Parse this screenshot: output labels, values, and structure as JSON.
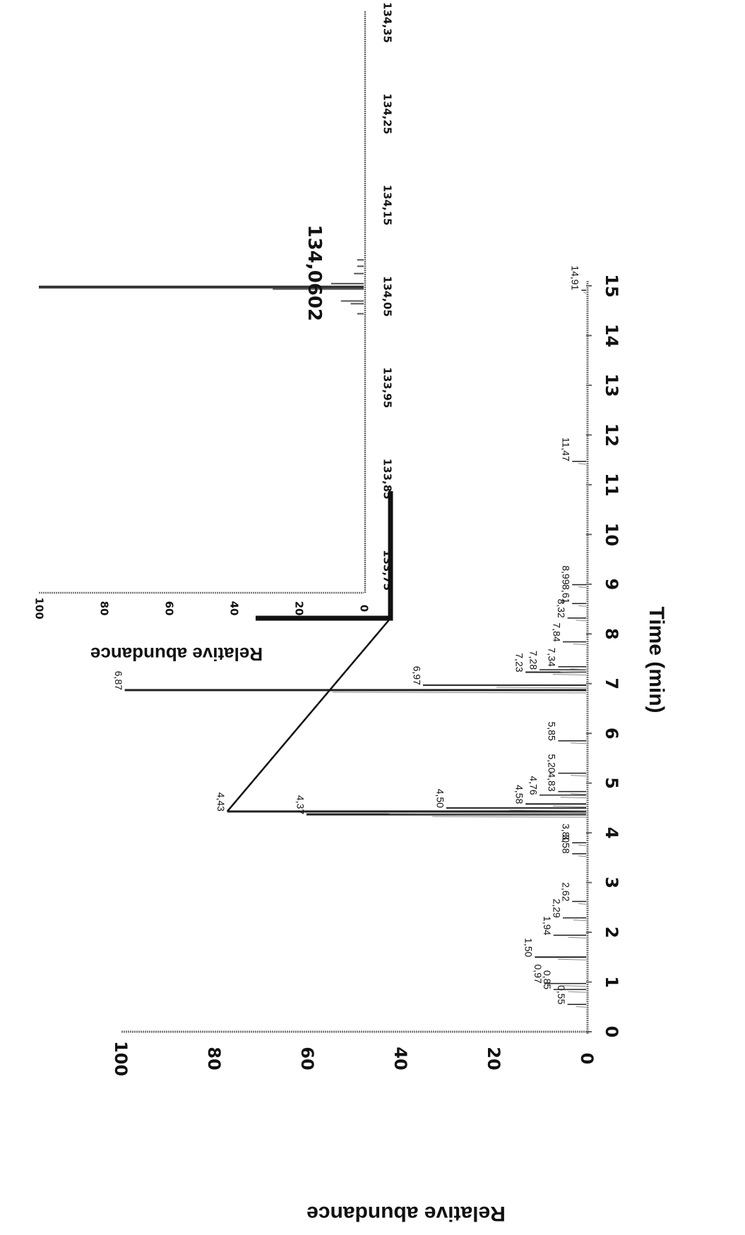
{
  "chart_data": [
    {
      "type": "line",
      "xlabel": "Time (min)",
      "ylabel": "Relative abundance",
      "xlim": [
        0,
        15
      ],
      "ylim": [
        0,
        100
      ],
      "x_ticks": [
        "0",
        "1",
        "2",
        "3",
        "4",
        "5",
        "6",
        "7",
        "8",
        "9",
        "10",
        "11",
        "12",
        "13",
        "14",
        "15"
      ],
      "y_ticks": [
        "0",
        "20",
        "40",
        "60",
        "80",
        "100"
      ],
      "peaks": [
        {
          "label": "0,55",
          "x": 0.55,
          "y": 4
        },
        {
          "label": "0,85",
          "x": 0.85,
          "y": 7
        },
        {
          "label": "0,97",
          "x": 0.97,
          "y": 9
        },
        {
          "label": "1,50",
          "x": 1.5,
          "y": 11
        },
        {
          "label": "1,94",
          "x": 1.94,
          "y": 7
        },
        {
          "label": "2,29",
          "x": 2.29,
          "y": 5
        },
        {
          "label": "2,62",
          "x": 2.62,
          "y": 3
        },
        {
          "label": "3,58",
          "x": 3.58,
          "y": 3
        },
        {
          "label": "3,80",
          "x": 3.8,
          "y": 3
        },
        {
          "label": "4,37",
          "x": 4.37,
          "y": 60
        },
        {
          "label": "4,43",
          "x": 4.43,
          "y": 77
        },
        {
          "label": "4,50",
          "x": 4.5,
          "y": 30
        },
        {
          "label": "4,58",
          "x": 4.58,
          "y": 13
        },
        {
          "label": "4,76",
          "x": 4.76,
          "y": 10
        },
        {
          "label": "4,83",
          "x": 4.83,
          "y": 6
        },
        {
          "label": "5,20",
          "x": 5.2,
          "y": 6
        },
        {
          "label": "5,85",
          "x": 5.85,
          "y": 6
        },
        {
          "label": "6,87",
          "x": 6.87,
          "y": 99
        },
        {
          "label": "6,97",
          "x": 6.97,
          "y": 35
        },
        {
          "label": "7,23",
          "x": 7.23,
          "y": 13
        },
        {
          "label": "7,28",
          "x": 7.28,
          "y": 10
        },
        {
          "label": "7,34",
          "x": 7.34,
          "y": 6
        },
        {
          "label": "7,84",
          "x": 7.84,
          "y": 5
        },
        {
          "label": "8,32",
          "x": 8.32,
          "y": 4
        },
        {
          "label": "8,61",
          "x": 8.61,
          "y": 3
        },
        {
          "label": "8,99",
          "x": 8.99,
          "y": 3
        },
        {
          "label": "11,47",
          "x": 11.47,
          "y": 3
        },
        {
          "label": "14,91",
          "x": 14.91,
          "y": 1
        }
      ]
    },
    {
      "type": "bar",
      "title": "134,0602",
      "ylabel": "Relative abundance",
      "xlim": [
        133.7,
        134.37
      ],
      "ylim": [
        0,
        100
      ],
      "x_ticks": [
        "133,75",
        "133,85",
        "133,95",
        "134,05",
        "134,15",
        "134,25",
        "134,35"
      ],
      "y_ticks": [
        "0",
        "20",
        "40",
        "60",
        "80",
        "100"
      ],
      "peaks": [
        {
          "x": 134.0602,
          "y": 100
        },
        {
          "x": 134.058,
          "y": 28
        },
        {
          "x": 134.064,
          "y": 10
        },
        {
          "x": 134.045,
          "y": 7
        },
        {
          "x": 134.042,
          "y": 4
        },
        {
          "x": 134.031,
          "y": 2
        },
        {
          "x": 134.075,
          "y": 3
        },
        {
          "x": 134.083,
          "y": 2
        },
        {
          "x": 134.09,
          "y": 2
        }
      ]
    }
  ]
}
